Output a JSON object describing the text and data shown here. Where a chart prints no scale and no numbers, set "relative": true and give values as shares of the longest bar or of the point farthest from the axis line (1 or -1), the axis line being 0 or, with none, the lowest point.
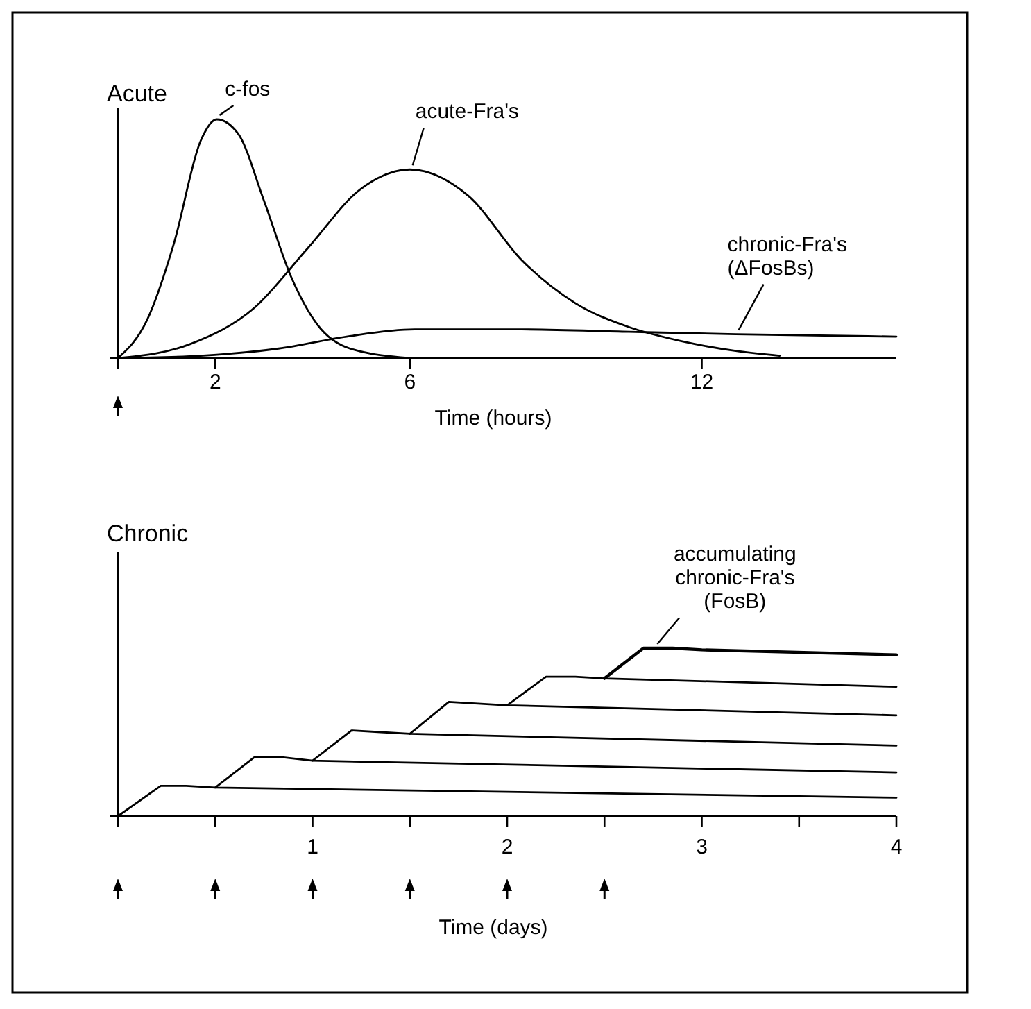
{
  "chart_data": [
    {
      "type": "line",
      "title": "Acute",
      "xlabel": "Time (hours)",
      "relative": true,
      "xlim": [
        0,
        16
      ],
      "xticks": [
        {
          "value": 0,
          "label": null
        },
        2,
        6,
        12
      ],
      "series": [
        {
          "name": "c-fos",
          "color": "#000000",
          "x": [
            0,
            0.6,
            1.15,
            1.7,
            2.03,
            2.47,
            3.0,
            3.56,
            4.1,
            4.77,
            6.0
          ],
          "values": [
            0,
            0.16,
            0.48,
            0.91,
            1,
            0.94,
            0.66,
            0.34,
            0.14,
            0.04,
            0
          ]
        },
        {
          "name": "acute-Fra's",
          "color": "#000000",
          "x": [
            0,
            1.5,
            2.8,
            3.9,
            5.0,
            6.0,
            7.2,
            8.3,
            9.4,
            10.5,
            11.6,
            12.7,
            13.6
          ],
          "values": [
            0,
            0.06,
            0.21,
            0.46,
            0.71,
            0.79,
            0.68,
            0.41,
            0.23,
            0.13,
            0.07,
            0.03,
            0.01
          ]
        },
        {
          "name": "chronic-Fra's (ΔFosBs)",
          "color": "#000000",
          "x": [
            0,
            1.7,
            3.3,
            4.7,
            6.1,
            8.3,
            10.5,
            12.7,
            16
          ],
          "values": [
            0,
            0.01,
            0.04,
            0.09,
            0.12,
            0.12,
            0.11,
            0.1,
            0.09
          ]
        }
      ]
    },
    {
      "type": "line",
      "title": "Chronic",
      "xlabel": "Time (days)",
      "relative": true,
      "xlim": [
        0,
        4
      ],
      "xticks": [
        {
          "value": 0,
          "label": null
        },
        {
          "value": 0.5,
          "label": null
        },
        1,
        {
          "value": 1.5,
          "label": null
        },
        2,
        {
          "value": 2.5,
          "label": null
        },
        3,
        {
          "value": 3.5,
          "label": null
        },
        4
      ],
      "series": [
        {
          "color": "#000000",
          "x": [
            0,
            0.22,
            0.35,
            0.5,
            4
          ],
          "values": [
            0,
            0.18,
            0.18,
            0.17,
            0.11
          ]
        },
        {
          "color": "#000000",
          "x": [
            0.5,
            0.7,
            0.85,
            1,
            4
          ],
          "values": [
            0.17,
            0.35,
            0.35,
            0.33,
            0.26
          ]
        },
        {
          "color": "#000000",
          "x": [
            1,
            1.2,
            1.35,
            1.5,
            4
          ],
          "values": [
            0.33,
            0.51,
            0.5,
            0.49,
            0.42
          ]
        },
        {
          "color": "#000000",
          "x": [
            1.5,
            1.7,
            1.85,
            2,
            4
          ],
          "values": [
            0.49,
            0.68,
            0.67,
            0.66,
            0.6
          ]
        },
        {
          "color": "#000000",
          "x": [
            2,
            2.2,
            2.35,
            2.5,
            4
          ],
          "values": [
            0.66,
            0.83,
            0.83,
            0.82,
            0.77
          ]
        },
        {
          "name": "accumulating chronic-Fra's (FosB)",
          "color": "#000000",
          "x": [
            2.5,
            2.7,
            2.85,
            3,
            4
          ],
          "values": [
            0.82,
            1,
            1,
            0.99,
            0.96
          ]
        }
      ]
    }
  ]
}
